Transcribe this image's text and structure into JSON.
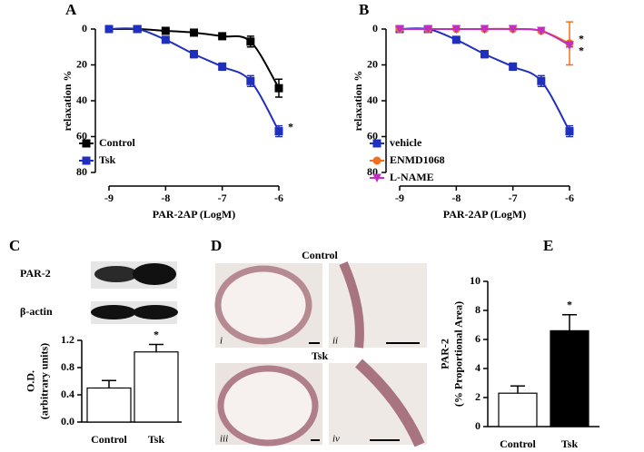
{
  "chart_data": [
    {
      "type": "line",
      "panel_label": "A",
      "xlabel": "PAR-2AP (LogM)",
      "ylabel": "relaxation %",
      "x": [
        -9,
        -8.5,
        -8,
        -7.5,
        -7,
        -6.5,
        -6
      ],
      "xlim": [
        -9,
        -6
      ],
      "xticks": [
        -9,
        -8,
        -7,
        -6
      ],
      "ylim": [
        0,
        80
      ],
      "yticks": [
        0,
        20,
        40,
        60,
        80
      ],
      "invert_y": true,
      "legend": "lower-left",
      "series": [
        {
          "name": "Control",
          "color": "#000000",
          "marker": "square",
          "values": [
            0,
            0,
            1,
            2,
            4,
            7,
            33
          ],
          "errors": [
            0,
            0,
            1,
            1,
            1,
            3,
            5
          ]
        },
        {
          "name": "Tsk",
          "color": "#1f2fbf",
          "marker": "square",
          "values": [
            0,
            0,
            6,
            14,
            21,
            29,
            57
          ],
          "errors": [
            0,
            0,
            1,
            2,
            2,
            3,
            3
          ],
          "annotation": "*"
        }
      ]
    },
    {
      "type": "line",
      "panel_label": "B",
      "xlabel": "PAR-2AP (LogM)",
      "ylabel": "relaxation %",
      "x": [
        -9,
        -8.5,
        -8,
        -7.5,
        -7,
        -6.5,
        -6
      ],
      "xlim": [
        -9,
        -6
      ],
      "xticks": [
        -9,
        -8,
        -7,
        -6
      ],
      "ylim": [
        0,
        80
      ],
      "yticks": [
        0,
        20,
        40,
        60,
        80
      ],
      "invert_y": true,
      "legend": "lower-left",
      "series": [
        {
          "name": "vehicle",
          "color": "#1f2fbf",
          "marker": "square",
          "values": [
            0,
            0,
            6,
            14,
            21,
            29,
            57
          ],
          "errors": [
            0,
            0,
            1,
            2,
            2,
            3,
            3
          ]
        },
        {
          "name": "ENMD1068",
          "color": "#f07020",
          "marker": "circle",
          "values": [
            0,
            0,
            0,
            0,
            0,
            1,
            8
          ],
          "errors": [
            0,
            0,
            0,
            0,
            0,
            0,
            12
          ],
          "annotation": "*"
        },
        {
          "name": "L-NAME",
          "color": "#c030c0",
          "marker": "triangle-down",
          "values": [
            0,
            0,
            0,
            0,
            0,
            1,
            9
          ],
          "errors": [
            0,
            0,
            0,
            0,
            0,
            0,
            1
          ],
          "annotation": "*"
        }
      ]
    },
    {
      "type": "bar",
      "panel_label": "C",
      "blot_labels": [
        "PAR-2",
        "β-actin"
      ],
      "ylabel": [
        "O.D.",
        "(arbitrary units)"
      ],
      "categories": [
        "Control",
        "Tsk"
      ],
      "values": [
        0.5,
        1.03
      ],
      "errors": [
        0.11,
        0.11
      ],
      "colors": [
        "#ffffff",
        "#ffffff"
      ],
      "ylim": [
        0,
        1.2
      ],
      "yticks": [
        {
          "value": 0,
          "label": "0.0"
        },
        0.4,
        0.8,
        1.2
      ],
      "annotation": {
        "category": "Tsk",
        "text": "*"
      }
    },
    {
      "type": "bar",
      "panel_label": "E",
      "ylabel": [
        "PAR-2",
        "(% Proportional Area)"
      ],
      "categories": [
        "Control",
        "Tsk"
      ],
      "values": [
        2.3,
        6.6
      ],
      "errors": [
        0.5,
        1.1
      ],
      "colors": [
        "#ffffff",
        "#000000"
      ],
      "ylim": [
        0,
        10
      ],
      "yticks": [
        0,
        2,
        4,
        6,
        8,
        10
      ],
      "annotation": {
        "category": "Tsk",
        "text": "*"
      }
    }
  ],
  "histology": {
    "panel_label": "D",
    "groups": [
      {
        "title": "Control",
        "images": [
          "i",
          "ii"
        ]
      },
      {
        "title": "Tsk",
        "images": [
          "iii",
          "iv"
        ]
      }
    ]
  }
}
